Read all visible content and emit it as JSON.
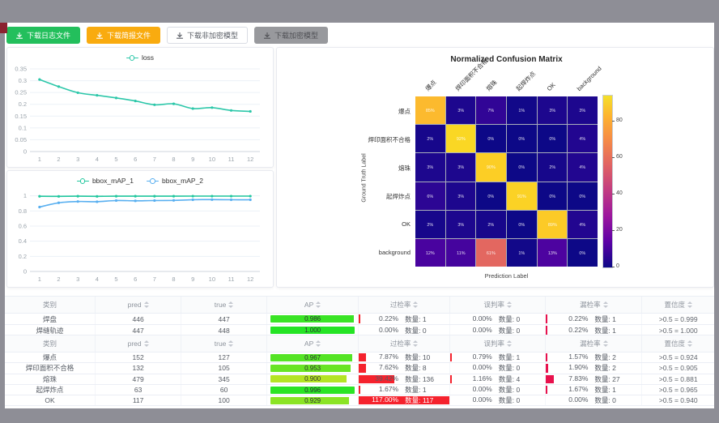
{
  "toolbar": {
    "buttons": [
      {
        "label": "下载日志文件",
        "style": "green"
      },
      {
        "label": "下载简报文件",
        "style": "orange"
      },
      {
        "label": "下载非加密模型",
        "style": "plain"
      },
      {
        "label": "下载加密模型",
        "style": "gray"
      }
    ]
  },
  "chart_data": [
    {
      "type": "line",
      "title": "",
      "x": [
        "1",
        "2",
        "3",
        "4",
        "5",
        "6",
        "7",
        "8",
        "9",
        "10",
        "11",
        "12"
      ],
      "yticks": [
        0,
        0.05,
        0.1,
        0.15,
        0.2,
        0.25,
        0.3,
        0.35
      ],
      "ylim": [
        0,
        0.35
      ],
      "legend_position": "top",
      "grid": true,
      "series": [
        {
          "name": "loss",
          "color": "#2cc7a9",
          "values": [
            0.305,
            0.275,
            0.249,
            0.238,
            0.227,
            0.214,
            0.198,
            0.202,
            0.182,
            0.186,
            0.174,
            0.17
          ]
        }
      ]
    },
    {
      "type": "line",
      "title": "",
      "x": [
        "1",
        "2",
        "3",
        "4",
        "5",
        "6",
        "7",
        "8",
        "9",
        "10",
        "11",
        "12"
      ],
      "yticks": [
        0,
        0.2,
        0.4,
        0.6,
        0.8,
        1
      ],
      "ylim": [
        0,
        1.05
      ],
      "legend_position": "top",
      "grid": true,
      "series": [
        {
          "name": "bbox_mAP_1",
          "color": "#21c79e",
          "values": [
            0.994,
            0.993,
            0.995,
            0.993,
            0.995,
            0.995,
            0.995,
            0.995,
            0.996,
            0.996,
            0.996,
            0.996
          ]
        },
        {
          "name": "bbox_mAP_2",
          "color": "#58aff0",
          "values": [
            0.852,
            0.908,
            0.925,
            0.922,
            0.938,
            0.934,
            0.938,
            0.94,
            0.948,
            0.95,
            0.948,
            0.948
          ]
        }
      ]
    },
    {
      "type": "heatmap",
      "title": "Normalized Confusion Matrix",
      "xlabel": "Prediction Label",
      "ylabel": "Ground Truth Label",
      "labels": [
        "爆点",
        "焊印面积不合格",
        "熔珠",
        "起焊炸点",
        "OK",
        "background"
      ],
      "unit": "%",
      "matrix": [
        [
          85,
          3,
          7,
          1,
          3,
          3
        ],
        [
          2,
          92,
          0,
          0,
          0,
          4
        ],
        [
          3,
          3,
          90,
          0,
          2,
          4
        ],
        [
          6,
          3,
          0,
          91,
          0,
          0
        ],
        [
          2,
          3,
          2,
          0,
          89,
          4
        ],
        [
          12,
          11,
          61,
          1,
          13,
          0
        ]
      ],
      "colorbar_ticks": [
        0,
        20,
        40,
        60,
        80
      ],
      "vmax": 94,
      "colormap": "plasma"
    }
  ],
  "tables": [
    {
      "headers": [
        "类别",
        "pred",
        "true",
        "AP",
        "过检率",
        "误判率",
        "漏检率",
        "置信度"
      ],
      "rows": [
        {
          "class": "焊盘",
          "pred": "446",
          "true": "447",
          "ap": "0.986",
          "ap_value": 0.986,
          "overkill_pct": "0.22%",
          "overkill_value": 0.22,
          "overkill_count": "数量: 1",
          "misjudge_pct": "0.00%",
          "misjudge_value": 0,
          "misjudge_count": "数量: 0",
          "miss_pct": "0.22%",
          "miss_value": 0.22,
          "miss_count": "数量: 1",
          "confidence": ">0.5 = 0.999"
        },
        {
          "class": "焊缝轨迹",
          "pred": "447",
          "true": "448",
          "ap": "1.000",
          "ap_value": 1.0,
          "overkill_pct": "0.00%",
          "overkill_value": 0,
          "overkill_count": "数量: 0",
          "misjudge_pct": "0.00%",
          "misjudge_value": 0,
          "misjudge_count": "数量: 0",
          "miss_pct": "0.22%",
          "miss_value": 0.22,
          "miss_count": "数量: 1",
          "confidence": ">0.5 = 1.000"
        }
      ]
    },
    {
      "headers": [
        "类别",
        "pred",
        "true",
        "AP",
        "过检率",
        "误判率",
        "漏检率",
        "置信度"
      ],
      "rows": [
        {
          "class": "爆点",
          "pred": "152",
          "true": "127",
          "ap": "0.967",
          "ap_value": 0.967,
          "overkill_pct": "7.87%",
          "overkill_value": 7.87,
          "overkill_count": "数量: 10",
          "misjudge_pct": "0.79%",
          "misjudge_value": 0.79,
          "misjudge_count": "数量: 1",
          "miss_pct": "1.57%",
          "miss_value": 1.57,
          "miss_count": "数量: 2",
          "confidence": ">0.5 = 0.924"
        },
        {
          "class": "焊印面积不合格",
          "pred": "132",
          "true": "105",
          "ap": "0.953",
          "ap_value": 0.953,
          "overkill_pct": "7.62%",
          "overkill_value": 7.62,
          "overkill_count": "数量: 8",
          "misjudge_pct": "0.00%",
          "misjudge_value": 0,
          "misjudge_count": "数量: 0",
          "miss_pct": "1.90%",
          "miss_value": 1.9,
          "miss_count": "数量: 2",
          "confidence": ">0.5 = 0.905"
        },
        {
          "class": "熔珠",
          "pred": "479",
          "true": "345",
          "ap": "0.900",
          "ap_value": 0.9,
          "overkill_pct": "39.42%",
          "overkill_value": 39.42,
          "overkill_count": "数量: 136",
          "misjudge_pct": "1.16%",
          "misjudge_value": 1.16,
          "misjudge_count": "数量: 4",
          "miss_pct": "7.83%",
          "miss_value": 7.83,
          "miss_count": "数量: 27",
          "confidence": ">0.5 = 0.881"
        },
        {
          "class": "起焊炸点",
          "pred": "63",
          "true": "60",
          "ap": "0.996",
          "ap_value": 0.996,
          "overkill_pct": "1.67%",
          "overkill_value": 1.67,
          "overkill_count": "数量: 1",
          "misjudge_pct": "0.00%",
          "misjudge_value": 0,
          "misjudge_count": "数量: 0",
          "miss_pct": "1.67%",
          "miss_value": 1.67,
          "miss_count": "数量: 1",
          "confidence": ">0.5 = 0.965"
        },
        {
          "class": "OK",
          "pred": "117",
          "true": "100",
          "ap": "0.929",
          "ap_value": 0.929,
          "overkill_pct": "117.00%",
          "overkill_value": 117.0,
          "overkill_count": "数量: 117",
          "misjudge_pct": "0.00%",
          "misjudge_value": 0,
          "misjudge_count": "数量: 0",
          "miss_pct": "0.00%",
          "miss_value": 0,
          "miss_count": "数量: 0",
          "confidence": ">0.5 = 0.940"
        }
      ]
    }
  ]
}
